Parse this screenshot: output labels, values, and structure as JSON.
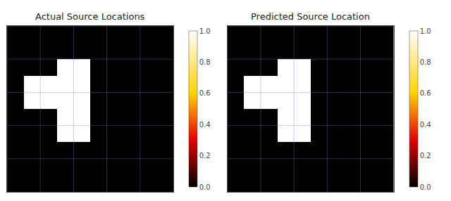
{
  "chart_data": [
    {
      "type": "heatmap",
      "title": "Actual Source Locations",
      "cells": [
        [
          0,
          0,
          0,
          0,
          0,
          0,
          0,
          0,
          0,
          0
        ],
        [
          0,
          0,
          0,
          0,
          0,
          0,
          0,
          0,
          0,
          0
        ],
        [
          0,
          0,
          0,
          1,
          1,
          0,
          0,
          0,
          0,
          0
        ],
        [
          0,
          1,
          1,
          1,
          1,
          0,
          0,
          0,
          0,
          0
        ],
        [
          0,
          1,
          1,
          1,
          1,
          0,
          0,
          0,
          0,
          0
        ],
        [
          0,
          0,
          0,
          1,
          1,
          0,
          0,
          0,
          0,
          0
        ],
        [
          0,
          0,
          0,
          1,
          1,
          0,
          0,
          0,
          0,
          0
        ],
        [
          0,
          0,
          0,
          0,
          0,
          0,
          0,
          0,
          0,
          0
        ],
        [
          0,
          0,
          0,
          0,
          0,
          0,
          0,
          0,
          0,
          0
        ],
        [
          0,
          0,
          0,
          0,
          0,
          0,
          0,
          0,
          0,
          0
        ]
      ],
      "xlim": [
        -0.5,
        9.5
      ],
      "ylim": [
        9.5,
        -0.5
      ],
      "xticks": [
        -0.5,
        1.5,
        3.5,
        5.5,
        7.5
      ],
      "yticks": [
        -0.5,
        1.5,
        3.5,
        5.5,
        7.5
      ],
      "grid": true,
      "tick_labels": false,
      "color": "hot",
      "colorbar_range": [
        0.0,
        1.0
      ],
      "colorbar_ticks": [
        {
          "value": 0.0,
          "label": "0.0"
        },
        0.2,
        0.4,
        0.6,
        0.8,
        {
          "value": 1.0,
          "label": "1.0"
        }
      ]
    },
    {
      "type": "heatmap",
      "title": "Predicted Source Location",
      "cells": [
        [
          0,
          0,
          0,
          0,
          0,
          0,
          0,
          0,
          0,
          0
        ],
        [
          0,
          0,
          0,
          0,
          0,
          0,
          0,
          0,
          0,
          0
        ],
        [
          0,
          0,
          0,
          1,
          1,
          0,
          0,
          0,
          0,
          0
        ],
        [
          0,
          1,
          1,
          1,
          1,
          0,
          0,
          0,
          0,
          0
        ],
        [
          0,
          1,
          1,
          1,
          1,
          0,
          0,
          0,
          0,
          0
        ],
        [
          0,
          0,
          0,
          1,
          1,
          0,
          0,
          0,
          0,
          0
        ],
        [
          0,
          0,
          0,
          1,
          1,
          0,
          0,
          0,
          0,
          0
        ],
        [
          0,
          0,
          0,
          0,
          0,
          0,
          0,
          0,
          0,
          0
        ],
        [
          0,
          0,
          0,
          0,
          0,
          0,
          0,
          0,
          0,
          0
        ],
        [
          0,
          0,
          0,
          0,
          0,
          0,
          0,
          0,
          0,
          0
        ]
      ],
      "xlim": [
        -0.5,
        9.5
      ],
      "ylim": [
        9.5,
        -0.5
      ],
      "xticks": [
        -0.5,
        1.5,
        3.5,
        5.5,
        7.5
      ],
      "yticks": [
        -0.5,
        1.5,
        3.5,
        5.5,
        7.5
      ],
      "grid": true,
      "tick_labels": false,
      "color": "hot",
      "colorbar_range": [
        0.0,
        1.0
      ],
      "colorbar_ticks": [
        {
          "value": 0.0,
          "label": "0.0"
        },
        0.2,
        0.4,
        0.6,
        0.8,
        {
          "value": 1.0,
          "label": "1.0"
        }
      ]
    }
  ]
}
